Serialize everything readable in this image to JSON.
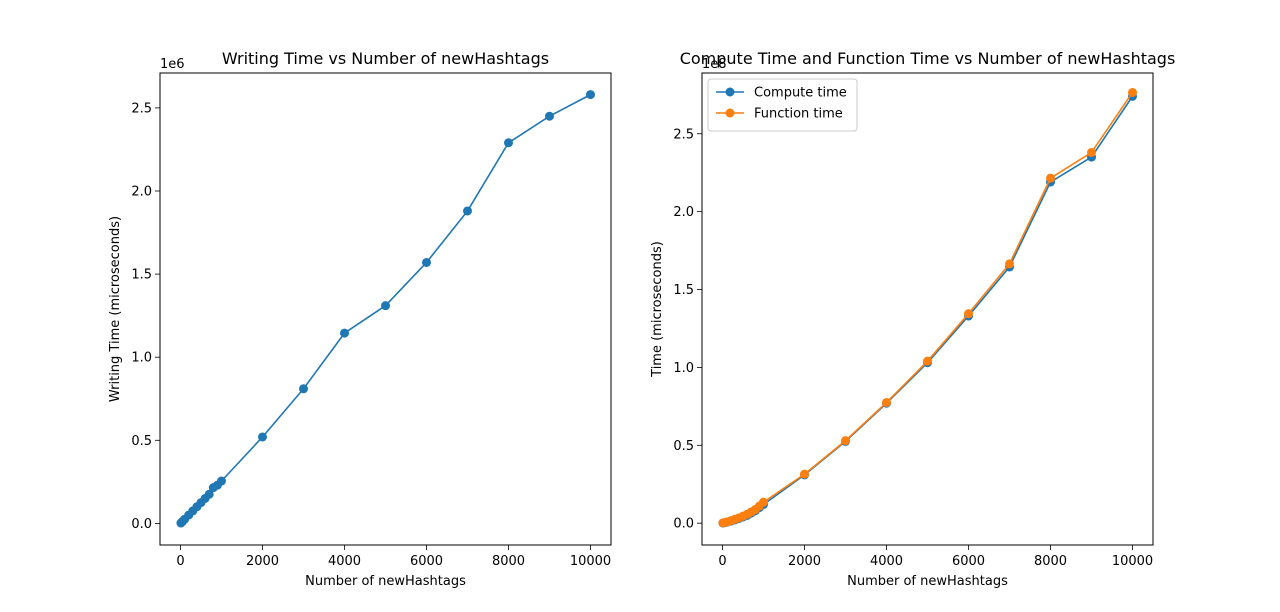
{
  "chart_data": [
    {
      "type": "line",
      "title": "Writing Time vs Number of newHashtags",
      "xlabel": "Number of newHashtags",
      "ylabel": "Writing Time (microseconds)",
      "y_offset_label": "1e6",
      "xlim": [
        -500,
        10500
      ],
      "ylim": [
        -0.13,
        2.71
      ],
      "xticks": [
        0,
        2000,
        4000,
        6000,
        8000,
        10000
      ],
      "xtick_labels": [
        "0",
        "2000",
        "4000",
        "6000",
        "8000",
        "10000"
      ],
      "yticks": [
        0.0,
        0.5,
        1.0,
        1.5,
        2.0,
        2.5
      ],
      "ytick_labels": [
        "0.0",
        "0.5",
        "1.0",
        "1.5",
        "2.0",
        "2.5"
      ],
      "grid": false,
      "series": [
        {
          "color": "#1f77b4",
          "x": [
            10,
            50,
            100,
            200,
            300,
            400,
            500,
            600,
            700,
            800,
            900,
            1000,
            2000,
            3000,
            4000,
            5000,
            6000,
            7000,
            8000,
            9000,
            10000
          ],
          "y": [
            0.002,
            0.012,
            0.025,
            0.05,
            0.075,
            0.1,
            0.125,
            0.15,
            0.175,
            0.215,
            0.23,
            0.255,
            0.52,
            0.81,
            1.145,
            1.31,
            1.57,
            1.88,
            2.29,
            2.45,
            2.58
          ]
        }
      ]
    },
    {
      "type": "line",
      "title": "Compute Time and Function Time vs Number of newHashtags",
      "xlabel": "Number of newHashtags",
      "ylabel": "Time (microseconds)",
      "y_offset_label": "1e8",
      "xlim": [
        -500,
        10500
      ],
      "ylim": [
        -0.14,
        2.89
      ],
      "xticks": [
        0,
        2000,
        4000,
        6000,
        8000,
        10000
      ],
      "xtick_labels": [
        "0",
        "2000",
        "4000",
        "6000",
        "8000",
        "10000"
      ],
      "yticks": [
        0.0,
        0.5,
        1.0,
        1.5,
        2.0,
        2.5
      ],
      "ytick_labels": [
        "0.0",
        "0.5",
        "1.0",
        "1.5",
        "2.0",
        "2.5"
      ],
      "grid": false,
      "legend_position": "top-left",
      "series": [
        {
          "name": "Compute time",
          "color": "#1f77b4",
          "x": [
            10,
            50,
            100,
            200,
            300,
            400,
            500,
            600,
            700,
            800,
            900,
            1000,
            2000,
            3000,
            4000,
            5000,
            6000,
            7000,
            8000,
            9000,
            10000
          ],
          "y": [
            0.001,
            0.003,
            0.006,
            0.013,
            0.021,
            0.03,
            0.04,
            0.05,
            0.065,
            0.08,
            0.1,
            0.12,
            0.31,
            0.525,
            0.77,
            1.03,
            1.33,
            1.645,
            2.19,
            2.35,
            2.74
          ]
        },
        {
          "name": "Function time",
          "color": "#ff7f0e",
          "x": [
            10,
            50,
            100,
            200,
            300,
            400,
            500,
            600,
            700,
            800,
            900,
            1000,
            2000,
            3000,
            4000,
            5000,
            6000,
            7000,
            8000,
            9000,
            10000
          ],
          "y": [
            0.002,
            0.004,
            0.008,
            0.016,
            0.025,
            0.034,
            0.045,
            0.057,
            0.072,
            0.088,
            0.11,
            0.135,
            0.315,
            0.53,
            0.775,
            1.04,
            1.345,
            1.665,
            2.215,
            2.38,
            2.765
          ]
        }
      ]
    }
  ]
}
